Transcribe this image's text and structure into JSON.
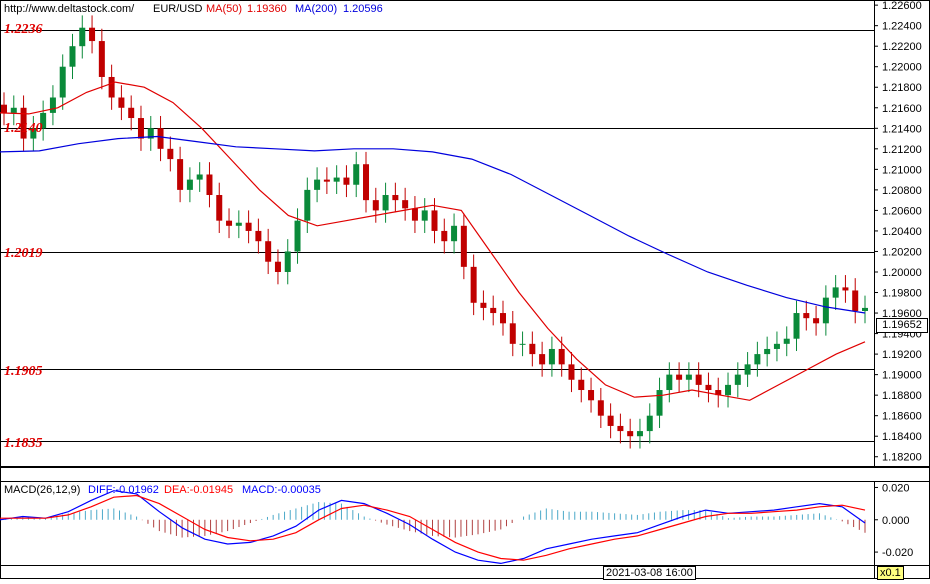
{
  "header": {
    "url": "http://www.deltastock.com/",
    "symbol": "EUR/USD",
    "ma50_label": "MA(50)",
    "ma50_value": "1.19360",
    "ma200_label": "MA(200)",
    "ma200_value": "1.20596"
  },
  "levels": [
    {
      "label": "1.2236",
      "value": 1.2236
    },
    {
      "label": "1.2140",
      "value": 1.214
    },
    {
      "label": "1.2019",
      "value": 1.2019
    },
    {
      "label": "1.1905",
      "value": 1.1905
    },
    {
      "label": "1.1835",
      "value": 1.1835
    }
  ],
  "last_price": "1.19652",
  "macd_header": {
    "title": "MACD(26,12,9)",
    "diff": "DIFF:-0.01962",
    "dea": "DEA:-0.01945",
    "macd": "MACD:-0.00035"
  },
  "crosshair_time": "2021-03-08 16:00",
  "zoom": "x0.1",
  "colors": {
    "up_candle": "#0a8a3a",
    "down_candle": "#c00000",
    "ma50": "#e00000",
    "ma200": "#0000dd",
    "level_line": "#000000",
    "level_text": "#e00000",
    "diff_line": "#0000ff",
    "dea_line": "#ff0000",
    "hist_pos": "#4aa8c8",
    "hist_neg": "#b04040"
  },
  "chart_data": [
    {
      "type": "candlestick",
      "title": "EUR/USD",
      "ylim": [
        1.181,
        1.2265
      ],
      "yticks": [
        "1.22600",
        "1.22400",
        "1.22200",
        "1.22000",
        "1.21800",
        "1.21600",
        "1.21400",
        "1.21200",
        "1.21000",
        "1.20800",
        "1.20600",
        "1.20400",
        "1.20200",
        "1.20000",
        "1.19800",
        "1.19600",
        "1.19400",
        "1.19200",
        "1.19000",
        "1.18800",
        "1.18600",
        "1.18400",
        "1.18200"
      ],
      "series": [
        {
          "name": "MA(50)",
          "type": "line",
          "values": [
            1.2155,
            1.2154,
            1.216,
            1.2175,
            1.2185,
            1.218,
            1.2165,
            1.214,
            1.211,
            1.208,
            1.2055,
            1.2045,
            1.205,
            1.2055,
            1.206,
            1.2065,
            1.206,
            1.202,
            1.198,
            1.1945,
            1.1915,
            1.189,
            1.1878,
            1.188,
            1.1885,
            1.188,
            1.1875,
            1.189,
            1.1905,
            1.192,
            1.1932
          ]
        },
        {
          "name": "MA(200)",
          "type": "line",
          "values": [
            1.2117,
            1.2118,
            1.2125,
            1.213,
            1.2132,
            1.2127,
            1.2122,
            1.212,
            1.2118,
            1.212,
            1.212,
            1.2117,
            1.211,
            1.2095,
            1.2075,
            1.2055,
            1.2035,
            1.2017,
            1.2,
            1.1987,
            1.1975,
            1.1966,
            1.196
          ]
        }
      ],
      "candles_close": [
        1.2155,
        1.216,
        1.213,
        1.214,
        1.2155,
        1.217,
        1.22,
        1.222,
        1.2238,
        1.2225,
        1.219,
        1.217,
        1.216,
        1.215,
        1.213,
        1.214,
        1.212,
        1.211,
        1.208,
        1.209,
        1.2095,
        1.2075,
        1.205,
        1.2045,
        1.2048,
        1.204,
        1.203,
        1.201,
        1.2,
        1.202,
        1.205,
        1.208,
        1.209,
        1.2088,
        1.2092,
        1.2085,
        1.2105,
        1.207,
        1.206,
        1.2075,
        1.207,
        1.2062,
        1.205,
        1.206,
        1.204,
        1.203,
        1.2045,
        1.2005,
        1.197,
        1.1965,
        1.196,
        1.195,
        1.193,
        1.193,
        1.192,
        1.191,
        1.1925,
        1.191,
        1.1895,
        1.1885,
        1.1875,
        1.186,
        1.185,
        1.1845,
        1.184,
        1.1845,
        1.186,
        1.1885,
        1.19,
        1.1895,
        1.19,
        1.189,
        1.1885,
        1.188,
        1.189,
        1.19,
        1.191,
        1.192,
        1.1925,
        1.193,
        1.1935,
        1.196,
        1.1955,
        1.195,
        1.1975,
        1.1985,
        1.1982,
        1.1962,
        1.1965
      ]
    },
    {
      "type": "line",
      "title": "MACD(26,12,9)",
      "ylim": [
        -0.028,
        0.024
      ],
      "yticks": [
        "0.020",
        "0.000",
        "-0.020"
      ],
      "series": [
        {
          "name": "DIFF",
          "values": [
            0.0,
            0.002,
            0.001,
            0.005,
            0.012,
            0.018,
            0.016,
            0.005,
            -0.005,
            -0.012,
            -0.015,
            -0.014,
            -0.01,
            -0.004,
            0.006,
            0.012,
            0.01,
            0.004,
            -0.003,
            -0.012,
            -0.02,
            -0.025,
            -0.027,
            -0.024,
            -0.018,
            -0.015,
            -0.012,
            -0.01,
            -0.008,
            -0.003,
            0.002,
            0.006,
            0.004,
            0.005,
            0.006,
            0.008,
            0.01,
            0.008,
            -0.002
          ]
        },
        {
          "name": "DEA",
          "values": [
            0.001,
            0.001,
            0.001,
            0.003,
            0.008,
            0.014,
            0.015,
            0.01,
            0.002,
            -0.006,
            -0.011,
            -0.013,
            -0.012,
            -0.008,
            0.0,
            0.007,
            0.009,
            0.006,
            0.002,
            -0.006,
            -0.014,
            -0.02,
            -0.024,
            -0.025,
            -0.022,
            -0.018,
            -0.015,
            -0.012,
            -0.01,
            -0.006,
            -0.002,
            0.002,
            0.004,
            0.004,
            0.005,
            0.006,
            0.008,
            0.009,
            0.006
          ]
        },
        {
          "name": "MACD",
          "type": "bar",
          "values": [
            0.0,
            0.002,
            0.001,
            0.004,
            0.006,
            0.007,
            0.002,
            -0.007,
            -0.011,
            -0.01,
            -0.007,
            -0.002,
            0.003,
            0.007,
            0.011,
            0.01,
            0.002,
            -0.003,
            -0.007,
            -0.01,
            -0.011,
            -0.009,
            -0.006,
            0.002,
            0.007,
            0.005,
            0.005,
            0.004,
            0.003,
            0.005,
            0.006,
            0.006,
            0.001,
            0.002,
            0.002,
            0.003,
            0.004,
            -0.001,
            -0.008
          ]
        }
      ]
    }
  ]
}
